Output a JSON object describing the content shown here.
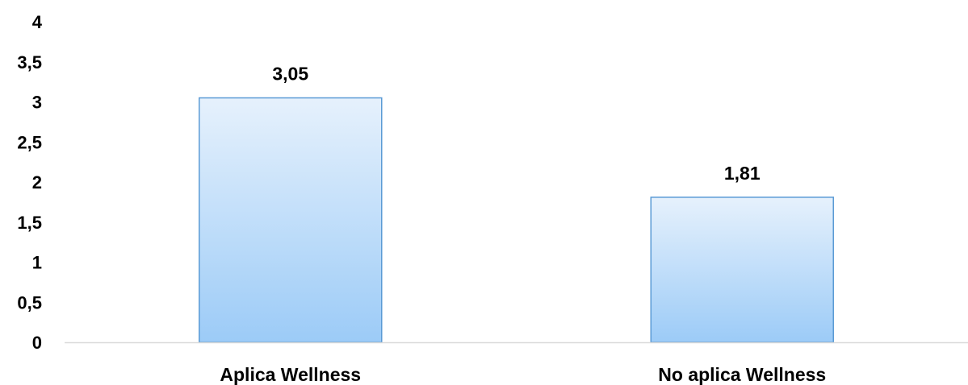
{
  "chart_data": {
    "type": "bar",
    "title": "",
    "xlabel": "",
    "ylabel": "",
    "categories": [
      "Aplica Wellness",
      "No aplica Wellness"
    ],
    "values": [
      3.05,
      1.81
    ],
    "value_labels": [
      "3,05",
      "1,81"
    ],
    "ylim": [
      0,
      4
    ],
    "yticks": [
      0,
      0.5,
      1,
      1.5,
      2,
      2.5,
      3,
      3.5,
      4
    ],
    "ytick_labels": [
      "0",
      "0,5",
      "1",
      "1,5",
      "2",
      "2,5",
      "3",
      "3,5",
      "4"
    ],
    "grid": false,
    "legend": "none",
    "colors": {
      "bar_top": "#e6f1fc",
      "bar_bottom": "#9ccbf7",
      "bar_border": "#5b9bd5",
      "axis": "#d9d9d9"
    }
  }
}
